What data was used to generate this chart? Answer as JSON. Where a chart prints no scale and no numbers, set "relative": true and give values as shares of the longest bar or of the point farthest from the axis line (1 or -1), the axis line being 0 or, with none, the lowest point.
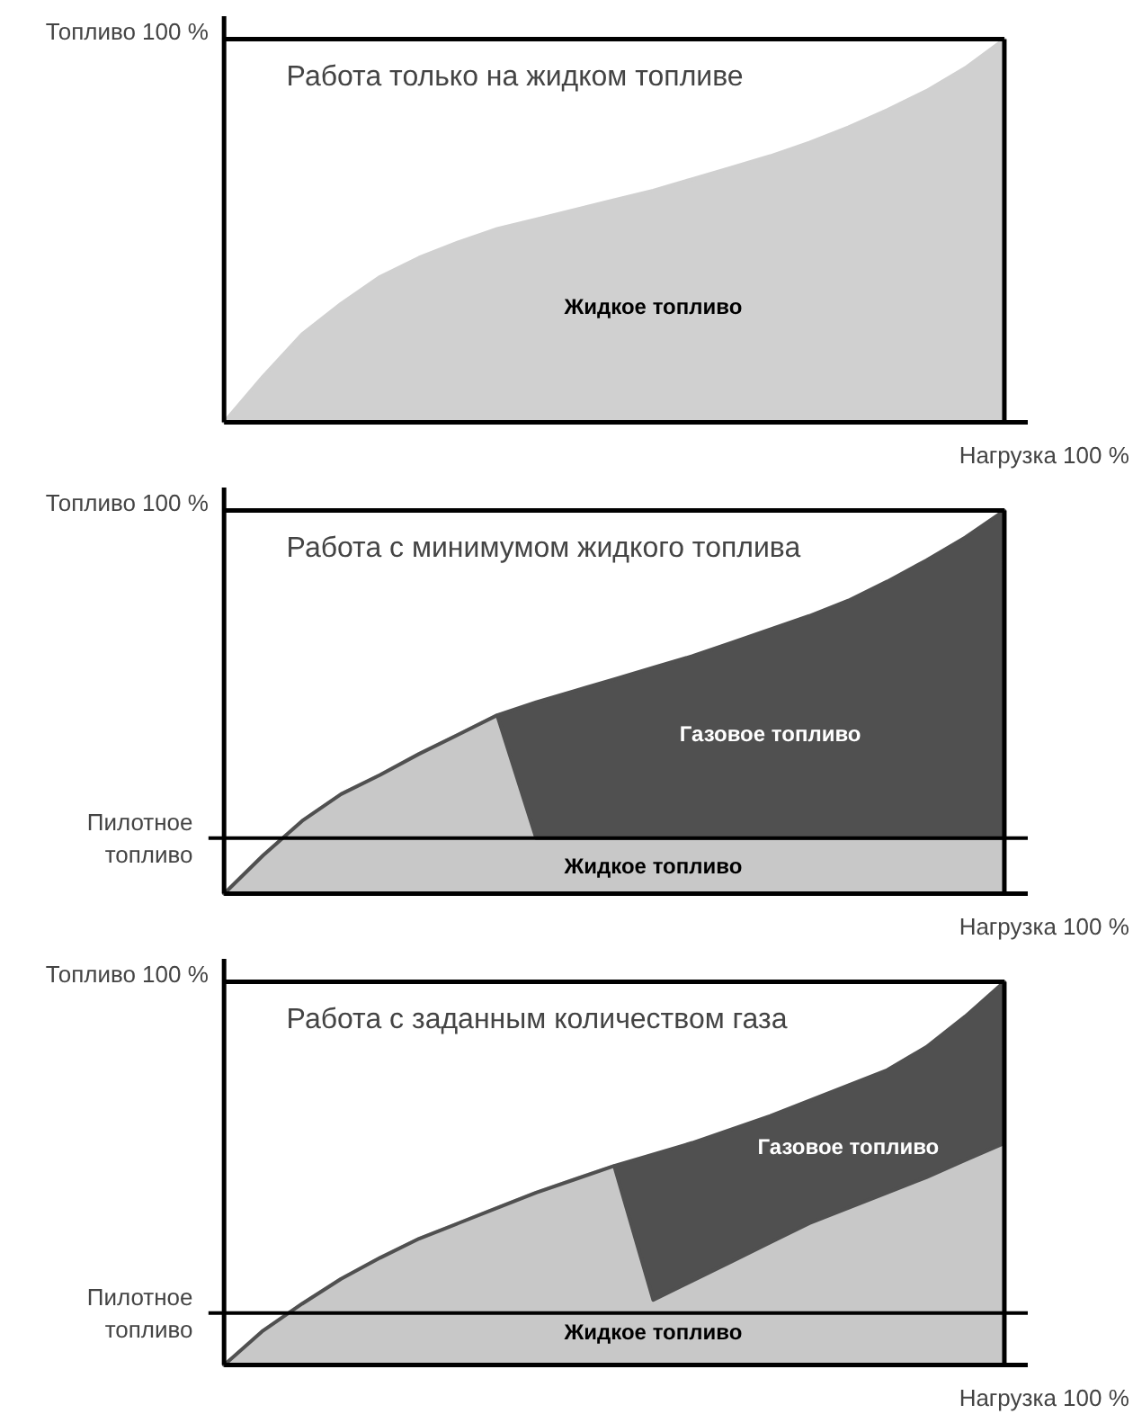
{
  "chart_data": [
    {
      "type": "area",
      "title": "Работа только на жидком топливе",
      "ylabel": "Топливо 100 %",
      "xlabel": "Нагрузка 100 %",
      "relative": true,
      "categories": [
        null,
        null,
        null,
        null,
        null,
        null,
        null,
        null,
        null,
        null,
        null,
        null,
        null,
        null,
        null,
        null,
        null,
        null,
        null,
        null,
        null
      ],
      "series": [
        {
          "name": "Жидкое топливо",
          "color": "#d0d0d0",
          "values": [
            0,
            0.12,
            0.23,
            0.31,
            0.38,
            0.43,
            0.47,
            0.505,
            0.53,
            0.555,
            0.58,
            0.605,
            0.635,
            0.665,
            0.695,
            0.73,
            0.77,
            0.815,
            0.865,
            0.925,
            1
          ]
        }
      ]
    },
    {
      "type": "area",
      "title": "Работа с минимумом жидкого топлива",
      "ylabel": "Топливо 100 %",
      "xlabel": "Нагрузка 100 %",
      "relative": true,
      "stacked": true,
      "categories": [
        null,
        null,
        null,
        null,
        null,
        null,
        null,
        null,
        null,
        null,
        null,
        null,
        null,
        null,
        null,
        null,
        null,
        null,
        null,
        null,
        null
      ],
      "series": [
        {
          "name": "Жидкое топливо",
          "color": "#c8c8c8",
          "values": [
            0,
            0.1,
            0.19,
            0.26,
            0.31,
            0.365,
            0.415,
            0.466,
            0.145,
            0.145,
            0.145,
            0.145,
            0.145,
            0.145,
            0.145,
            0.145,
            0.145,
            0.145,
            0.145,
            0.145,
            0.145
          ]
        },
        {
          "name": "Газовое топливо",
          "color": "#505050",
          "values": [
            0,
            0,
            0,
            0,
            0,
            0,
            0,
            0,
            0.355,
            0.385,
            0.415,
            0.445,
            0.475,
            0.51,
            0.545,
            0.58,
            0.62,
            0.67,
            0.725,
            0.785,
            0.855
          ]
        }
      ],
      "ref_lines": [
        {
          "axis": "y",
          "value": 0.145,
          "label": "Пилотное топливо"
        }
      ]
    },
    {
      "type": "area",
      "title": "Работа с заданным количеством газа",
      "ylabel": "Топливо 100 %",
      "xlabel": "Нагрузка 100 %",
      "relative": true,
      "stacked": true,
      "categories": [
        null,
        null,
        null,
        null,
        null,
        null,
        null,
        null,
        null,
        null,
        null,
        null,
        null,
        null,
        null,
        null,
        null,
        null,
        null,
        null,
        null
      ],
      "series": [
        {
          "name": "Жидкое топливо",
          "color": "#c8c8c8",
          "values": [
            0,
            0.09,
            0.16,
            0.225,
            0.28,
            0.33,
            0.37,
            0.41,
            0.45,
            0.485,
            0.52,
            0.17,
            0.22,
            0.27,
            0.32,
            0.37,
            0.41,
            0.45,
            0.49,
            0.535,
            0.579
          ]
        },
        {
          "name": "Газовое топливо",
          "color": "#505050",
          "values": [
            0,
            0,
            0,
            0,
            0,
            0,
            0,
            0,
            0,
            0,
            0,
            0.38,
            0.36,
            0.345,
            0.33,
            0.32,
            0.32,
            0.32,
            0.34,
            0.375,
            0.421
          ]
        }
      ],
      "ref_lines": [
        {
          "axis": "y",
          "value": 0.136,
          "label": "Пилотное топливо"
        }
      ]
    }
  ]
}
